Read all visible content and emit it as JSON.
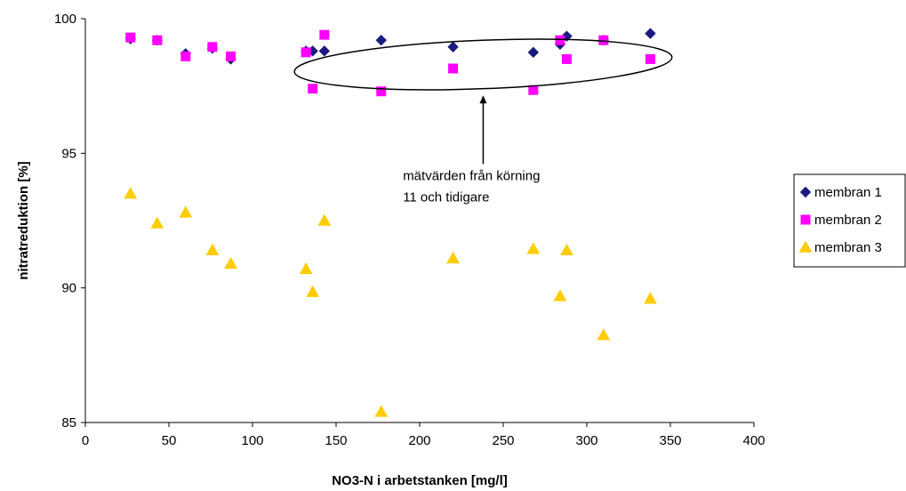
{
  "chart_data": {
    "type": "scatter",
    "title": "",
    "xlabel": "NO3-N i arbetstanken [mg/l]",
    "ylabel": "nitratreduktion [%]",
    "xlim": [
      0,
      400
    ],
    "ylim": [
      85,
      100
    ],
    "xticks": [
      0,
      50,
      100,
      150,
      200,
      250,
      300,
      350,
      400
    ],
    "yticks": [
      85,
      90,
      95,
      100
    ],
    "grid": false,
    "legend_position": "right",
    "series": [
      {
        "name": "membran 1",
        "marker": "diamond",
        "color": "#1a1a80",
        "points": [
          [
            27,
            99.25
          ],
          [
            43,
            99.2
          ],
          [
            60,
            98.7
          ],
          [
            76,
            98.9
          ],
          [
            87,
            98.5
          ],
          [
            132,
            98.8
          ],
          [
            136,
            98.8
          ],
          [
            143,
            98.8
          ],
          [
            177,
            99.2
          ],
          [
            220,
            98.95
          ],
          [
            268,
            98.75
          ],
          [
            284,
            99.05
          ],
          [
            288,
            99.35
          ],
          [
            310,
            99.2
          ],
          [
            338,
            99.45
          ]
        ]
      },
      {
        "name": "membran 2",
        "marker": "square",
        "color": "#ff00ff",
        "points": [
          [
            27,
            99.3
          ],
          [
            43,
            99.2
          ],
          [
            60,
            98.6
          ],
          [
            76,
            98.95
          ],
          [
            87,
            98.6
          ],
          [
            132,
            98.75
          ],
          [
            136,
            97.4
          ],
          [
            143,
            99.4
          ],
          [
            177,
            97.3
          ],
          [
            220,
            98.15
          ],
          [
            268,
            97.35
          ],
          [
            284,
            99.2
          ],
          [
            288,
            98.5
          ],
          [
            310,
            99.2
          ],
          [
            338,
            98.5
          ]
        ]
      },
      {
        "name": "membran 3",
        "marker": "triangle",
        "color": "#ffcc00",
        "points": [
          [
            27,
            93.5
          ],
          [
            43,
            92.4
          ],
          [
            60,
            92.8
          ],
          [
            76,
            91.4
          ],
          [
            87,
            90.9
          ],
          [
            132,
            90.7
          ],
          [
            136,
            89.85
          ],
          [
            143,
            92.5
          ],
          [
            177,
            85.4
          ],
          [
            220,
            91.1
          ],
          [
            268,
            91.45
          ],
          [
            284,
            89.7
          ],
          [
            288,
            91.4
          ],
          [
            310,
            88.25
          ],
          [
            338,
            89.6
          ]
        ]
      }
    ],
    "annotation": {
      "lines": [
        "mätvärden från körning",
        "11 och tidigare"
      ],
      "ellipse_center": [
        238,
        98.3
      ],
      "ellipse_radius_x": 113,
      "ellipse_radius_y": 0.9,
      "arrow_from": [
        238,
        94.6
      ],
      "arrow_to": [
        238,
        97.15
      ],
      "text_at": [
        190,
        94.0
      ]
    }
  }
}
